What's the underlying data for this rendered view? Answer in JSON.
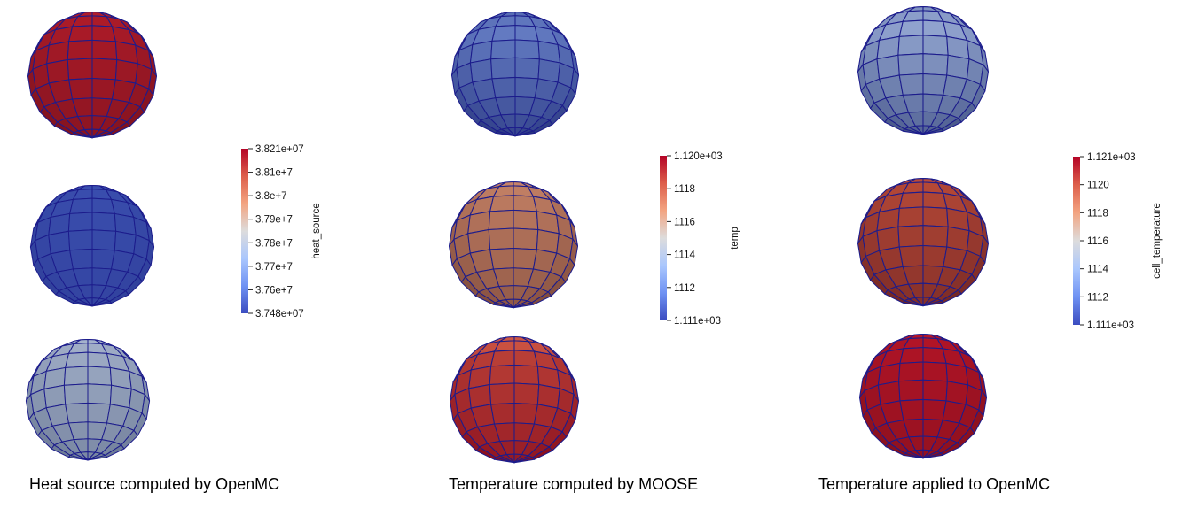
{
  "panels": [
    {
      "caption": "Heat source computed by OpenMC",
      "spheres": [
        {
          "shade": "top-bright",
          "colors": {
            "light": "#c6202e",
            "dark": "#6e0f1b"
          }
        },
        {
          "shade": "uniform",
          "colors": {
            "light": "#3f55b8",
            "dark": "#28348a"
          }
        },
        {
          "shade": "top-bright",
          "colors": {
            "light": "#bcc9e2",
            "dark": "#5c6a86"
          }
        }
      ],
      "colorbar": {
        "title": "heat_source",
        "max_label": "3.821e+07",
        "min_label": "3.748e+07",
        "ticks": [
          "3.81e+7",
          "3.8e+7",
          "3.79e+7",
          "3.78e+7",
          "3.77e+7",
          "3.76e+7"
        ],
        "colors": [
          "#b40426",
          "#dd5f4b",
          "#f3a481",
          "#dddcdc",
          "#aac7fd",
          "#6f92f3",
          "#3b4cc0"
        ]
      }
    },
    {
      "caption": "Temperature computed by MOOSE",
      "spheres": [
        {
          "shade": "mid-bright",
          "colors": {
            "light": "#7590d6",
            "dark": "#24307a"
          }
        },
        {
          "shade": "top-bright",
          "colors": {
            "light": "#e49a78",
            "dark": "#6a3a30"
          }
        },
        {
          "shade": "top-red",
          "colors": {
            "light": "#e0684c",
            "dark": "#8a0f1e"
          }
        }
      ],
      "colorbar": {
        "title": "temp",
        "max_label": "1.120e+03",
        "min_label": "1.111e+03",
        "ticks": [
          "1118",
          "1116",
          "1114",
          "1112"
        ],
        "colors": [
          "#b40426",
          "#dd5f4b",
          "#f3a481",
          "#dddcdc",
          "#aac7fd",
          "#6f92f3",
          "#3b4cc0"
        ]
      }
    },
    {
      "caption": "Temperature applied to OpenMC",
      "spheres": [
        {
          "shade": "mid-bright",
          "colors": {
            "light": "#a9bde6",
            "dark": "#3b4a7e"
          }
        },
        {
          "shade": "top-bright",
          "colors": {
            "light": "#d85a40",
            "dark": "#5e1c1f"
          }
        },
        {
          "shade": "uniform-red",
          "colors": {
            "light": "#c4162a",
            "dark": "#6a0d18"
          }
        }
      ],
      "colorbar": {
        "title": "cell_temperature",
        "max_label": "1.121e+03",
        "min_label": "1.111e+03",
        "ticks": [
          "1120",
          "1118",
          "1116",
          "1114",
          "1112"
        ],
        "colors": [
          "#b40426",
          "#dd5f4b",
          "#f3a481",
          "#dddcdc",
          "#aac7fd",
          "#6f92f3",
          "#3b4cc0"
        ]
      }
    }
  ],
  "grid_line_color": "#1c1c8c"
}
